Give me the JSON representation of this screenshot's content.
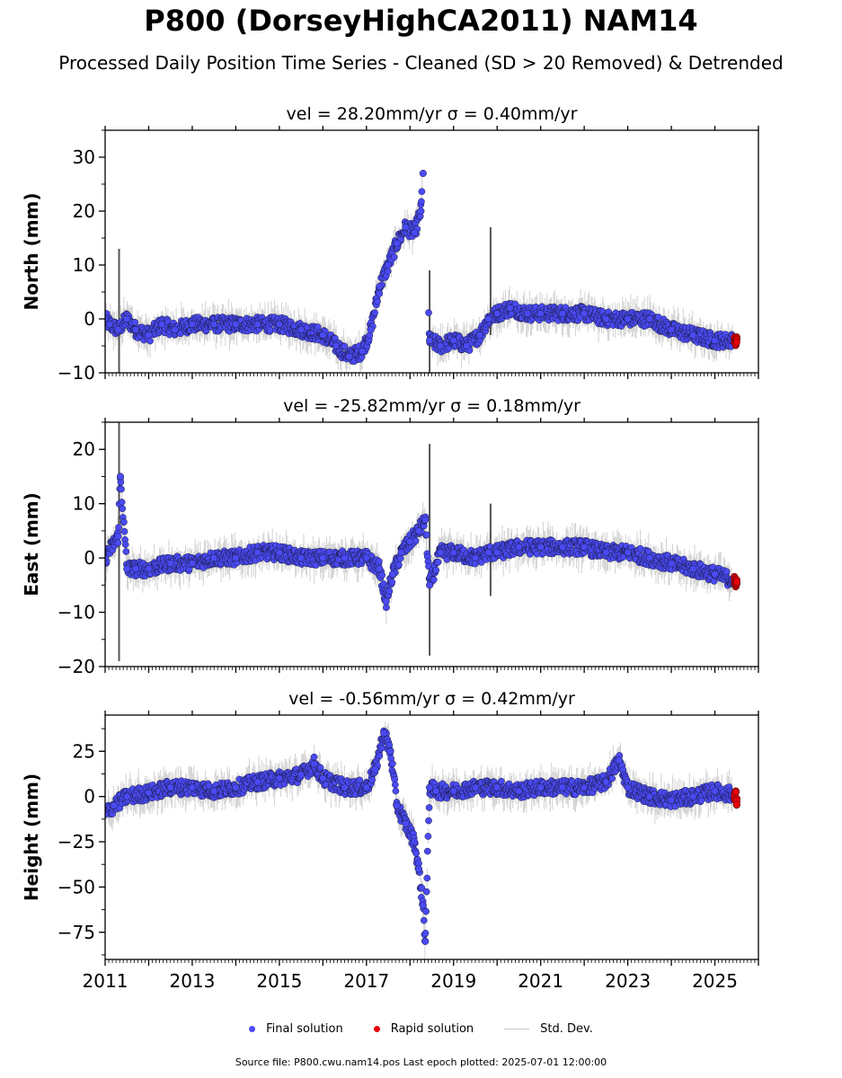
{
  "title": "P800 (DorseyHighCA2011) NAM14",
  "subtitle": "Processed Daily Position Time Series - Cleaned (SD > 20 Removed) & Detrended",
  "legend": {
    "final_label": "Final solution",
    "rapid_label": "Rapid solution",
    "std_label": "Std. Dev.",
    "final_color": "#4a4af5",
    "rapid_color": "#e8000b",
    "std_color": "#c8c8c8"
  },
  "footer": "Source file: P800.cwu.nam14.pos  Last epoch plotted: 2025-07-01 12:00:00",
  "chart_data": [
    {
      "type": "scatter",
      "title": "vel = 28.20mm/yr   σ = 0.40mm/yr",
      "ylabel": "North (mm)",
      "xlim": [
        2011.0,
        2026.0
      ],
      "ylim": [
        -10,
        35
      ],
      "yticks": [
        -10,
        0,
        10,
        20,
        30
      ],
      "ytick_labels": [
        "−10",
        "0",
        "10",
        "20",
        "30"
      ],
      "xticks": [
        2011,
        2013,
        2015,
        2017,
        2019,
        2021,
        2023,
        2025
      ],
      "series": [
        {
          "name": "Final solution",
          "x": [
            2011.0,
            2011.1,
            2011.3,
            2011.5,
            2011.7,
            2012.0,
            2012.3,
            2012.6,
            2013.0,
            2013.5,
            2014.0,
            2014.5,
            2015.0,
            2015.5,
            2016.0,
            2016.3,
            2016.6,
            2016.9,
            2017.1,
            2017.3,
            2017.5,
            2017.7,
            2017.9,
            2018.1,
            2018.25,
            2018.3,
            2018.45,
            2018.7,
            2019.0,
            2019.3,
            2019.6,
            2019.8,
            2020.0,
            2020.3,
            2020.7,
            2021.0,
            2021.5,
            2022.0,
            2022.5,
            2023.0,
            2023.5,
            2024.0,
            2024.5,
            2025.0,
            2025.4
          ],
          "y": [
            0,
            -1,
            -2,
            0,
            -2,
            -3,
            -1,
            -2,
            -1,
            -1,
            -1,
            -1,
            -1,
            -2,
            -3,
            -5,
            -7,
            -6,
            -2,
            6,
            10,
            14,
            17,
            16,
            20,
            27,
            -4,
            -5,
            -4,
            -5,
            -3,
            0,
            1,
            2,
            1,
            1,
            1,
            1,
            0,
            0,
            0,
            -2,
            -3,
            -4,
            -4
          ]
        },
        {
          "name": "Rapid solution",
          "x": [
            2025.45,
            2025.48,
            2025.5
          ],
          "y": [
            -4,
            -4.5,
            -4
          ]
        }
      ],
      "std_spikes": [
        {
          "x": 2011.32,
          "lo": -10,
          "hi": 13
        },
        {
          "x": 2018.45,
          "lo": -10,
          "hi": 9
        },
        {
          "x": 2019.85,
          "lo": -3,
          "hi": 17
        }
      ]
    },
    {
      "type": "scatter",
      "title": "vel = -25.82mm/yr   σ = 0.18mm/yr",
      "ylabel": "East (mm)",
      "xlim": [
        2011.0,
        2026.0
      ],
      "ylim": [
        -20,
        25
      ],
      "yticks": [
        -20,
        -10,
        0,
        10,
        20
      ],
      "ytick_labels": [
        "−20",
        "−10",
        "0",
        "10",
        "20"
      ],
      "xticks": [
        2011,
        2013,
        2015,
        2017,
        2019,
        2021,
        2023,
        2025
      ],
      "series": [
        {
          "name": "Final solution",
          "x": [
            2011.0,
            2011.3,
            2011.35,
            2011.5,
            2011.7,
            2012.0,
            2012.5,
            2013.0,
            2013.5,
            2014.0,
            2014.5,
            2015.0,
            2015.5,
            2016.0,
            2016.5,
            2017.0,
            2017.3,
            2017.45,
            2017.6,
            2017.8,
            2018.0,
            2018.2,
            2018.35,
            2018.45,
            2018.7,
            2019.0,
            2019.5,
            2019.8,
            2020.0,
            2020.5,
            2021.0,
            2021.5,
            2022.0,
            2022.5,
            2023.0,
            2023.5,
            2024.0,
            2024.5,
            2025.0,
            2025.4
          ],
          "y": [
            0,
            4,
            15,
            -2,
            -2,
            -2,
            -1,
            -1,
            0,
            0,
            1,
            1,
            0,
            0,
            0,
            0,
            -2,
            -8,
            -3,
            1,
            3,
            5,
            7,
            -5,
            1,
            1,
            0,
            1,
            1,
            2,
            2,
            2,
            2,
            1,
            1,
            0,
            -1,
            -2,
            -3,
            -4
          ]
        },
        {
          "name": "Rapid solution",
          "x": [
            2025.45,
            2025.48,
            2025.5
          ],
          "y": [
            -4,
            -5,
            -4.5
          ]
        }
      ],
      "std_spikes": [
        {
          "x": 2011.32,
          "lo": -19,
          "hi": 25
        },
        {
          "x": 2018.45,
          "lo": -18,
          "hi": 21
        },
        {
          "x": 2019.85,
          "lo": -7,
          "hi": 10
        }
      ]
    },
    {
      "type": "scatter",
      "title": "vel = -0.56mm/yr   σ = 0.42mm/yr",
      "ylabel": "Height (mm)",
      "xlim": [
        2011.0,
        2026.0
      ],
      "ylim": [
        -90,
        45
      ],
      "yticks": [
        -75,
        -50,
        -25,
        0,
        25
      ],
      "ytick_labels": [
        "−75",
        "−50",
        "−25",
        "0",
        "25"
      ],
      "xticks": [
        2011,
        2013,
        2015,
        2017,
        2019,
        2021,
        2023,
        2025
      ],
      "series": [
        {
          "name": "Final solution",
          "x": [
            2011.0,
            2011.2,
            2011.5,
            2012.0,
            2012.5,
            2013.0,
            2013.5,
            2014.0,
            2014.5,
            2015.0,
            2015.5,
            2015.8,
            2016.0,
            2016.5,
            2017.0,
            2017.2,
            2017.4,
            2017.55,
            2017.7,
            2017.9,
            2018.1,
            2018.2,
            2018.3,
            2018.35,
            2018.45,
            2018.6,
            2019.0,
            2019.5,
            2020.0,
            2020.5,
            2021.0,
            2021.5,
            2022.0,
            2022.5,
            2022.8,
            2023.0,
            2023.5,
            2024.0,
            2024.5,
            2025.0,
            2025.4
          ],
          "y": [
            -10,
            -5,
            0,
            2,
            5,
            5,
            3,
            5,
            8,
            10,
            12,
            18,
            10,
            5,
            5,
            15,
            35,
            25,
            -5,
            -15,
            -25,
            -40,
            -60,
            -80,
            5,
            3,
            3,
            5,
            5,
            3,
            5,
            5,
            5,
            8,
            20,
            5,
            0,
            -2,
            0,
            3,
            1
          ]
        },
        {
          "name": "Rapid solution",
          "x": [
            2025.45,
            2025.48,
            2025.5
          ],
          "y": [
            0,
            3,
            -3
          ]
        }
      ],
      "std_spikes": []
    }
  ],
  "xtick_labels": [
    "2011",
    "2013",
    "2015",
    "2017",
    "2019",
    "2021",
    "2023",
    "2025"
  ]
}
